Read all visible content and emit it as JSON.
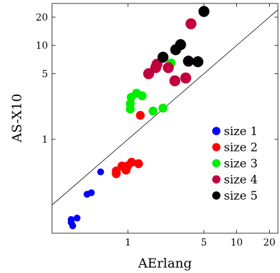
{
  "chart_data": {
    "type": "scatter",
    "title": "",
    "xlabel": "AErlang",
    "ylabel": "AS-X10",
    "xscale": "log",
    "yscale": "log",
    "xlim": [
      0.2,
      24
    ],
    "ylim": [
      0.1,
      28
    ],
    "grid": false,
    "legend_position": "bottom-right",
    "diagonal_reference_line": true,
    "x_ticks": [
      {
        "value": 1,
        "label": "1"
      },
      {
        "value": 5,
        "label": "5"
      },
      {
        "value": 10,
        "label": "10"
      },
      {
        "value": 20,
        "label": "20"
      }
    ],
    "y_ticks": [
      {
        "value": 1,
        "label": "1"
      },
      {
        "value": 5,
        "label": "5"
      },
      {
        "value": 10,
        "label": "10"
      },
      {
        "value": 20,
        "label": "20"
      }
    ],
    "series": [
      {
        "name": "size 1",
        "color": "#0000ff",
        "marker_size": "small",
        "points": [
          {
            "x": 0.3,
            "y": 0.14
          },
          {
            "x": 0.3,
            "y": 0.13
          },
          {
            "x": 0.31,
            "y": 0.12
          },
          {
            "x": 0.34,
            "y": 0.145
          },
          {
            "x": 0.42,
            "y": 0.26
          },
          {
            "x": 0.46,
            "y": 0.27
          },
          {
            "x": 0.56,
            "y": 0.45
          }
        ]
      },
      {
        "name": "size 2",
        "color": "#ff0000",
        "marker_size": "medium",
        "points": [
          {
            "x": 0.78,
            "y": 0.46
          },
          {
            "x": 0.78,
            "y": 0.43
          },
          {
            "x": 0.88,
            "y": 0.52
          },
          {
            "x": 0.96,
            "y": 0.47
          },
          {
            "x": 0.99,
            "y": 0.52
          },
          {
            "x": 1.08,
            "y": 0.57
          },
          {
            "x": 1.25,
            "y": 0.55
          },
          {
            "x": 1.3,
            "y": 1.8
          }
        ]
      },
      {
        "name": "size 3",
        "color": "#00ee00",
        "marker_size": "medium",
        "points": [
          {
            "x": 1.05,
            "y": 2.1
          },
          {
            "x": 1.05,
            "y": 2.4
          },
          {
            "x": 1.07,
            "y": 2.8
          },
          {
            "x": 1.2,
            "y": 3.1
          },
          {
            "x": 1.35,
            "y": 2.9
          },
          {
            "x": 1.7,
            "y": 2.0
          },
          {
            "x": 2.1,
            "y": 2.15
          },
          {
            "x": 2.5,
            "y": 6.5
          }
        ]
      },
      {
        "name": "size 4",
        "color": "#c0003c",
        "marker_size": "large",
        "points": [
          {
            "x": 1.55,
            "y": 5.0
          },
          {
            "x": 1.8,
            "y": 5.8
          },
          {
            "x": 1.85,
            "y": 6.3
          },
          {
            "x": 2.35,
            "y": 5.8
          },
          {
            "x": 2.7,
            "y": 4.2
          },
          {
            "x": 3.4,
            "y": 4.5
          },
          {
            "x": 3.8,
            "y": 17
          }
        ]
      },
      {
        "name": "size 5",
        "color": "#000000",
        "marker_size": "large",
        "points": [
          {
            "x": 2.1,
            "y": 7.5
          },
          {
            "x": 2.75,
            "y": 9.0
          },
          {
            "x": 3.05,
            "y": 10.2
          },
          {
            "x": 3.6,
            "y": 6.8
          },
          {
            "x": 4.4,
            "y": 6.7
          },
          {
            "x": 5.0,
            "y": 23
          }
        ]
      }
    ]
  }
}
